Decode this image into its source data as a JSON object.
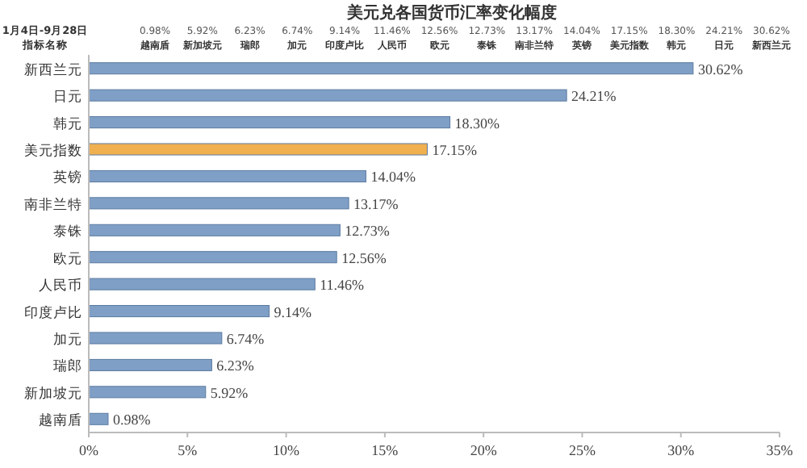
{
  "chart_data": {
    "type": "bar",
    "orientation": "horizontal",
    "title": "美元兑各国货币汇率变化幅度",
    "annotations": [
      "1月4日-9月28日",
      "指标名称"
    ],
    "categories": [
      "新西兰元",
      "日元",
      "韩元",
      "美元指数",
      "英镑",
      "南非兰特",
      "泰铢",
      "欧元",
      "人民币",
      "印度卢比",
      "加元",
      "瑞郎",
      "新加坡元",
      "越南盾"
    ],
    "values": [
      30.62,
      24.21,
      18.3,
      17.15,
      14.04,
      13.17,
      12.73,
      12.56,
      11.46,
      9.14,
      6.74,
      6.23,
      5.92,
      0.98
    ],
    "value_labels": [
      "30.62%",
      "24.21%",
      "18.30%",
      "17.15%",
      "14.04%",
      "13.17%",
      "12.73%",
      "12.56%",
      "11.46%",
      "9.14%",
      "6.74%",
      "6.23%",
      "5.92%",
      "0.98%"
    ],
    "colors": [
      "#7f9fc6",
      "#7f9fc6",
      "#7f9fc6",
      "#f0b050",
      "#7f9fc6",
      "#7f9fc6",
      "#7f9fc6",
      "#7f9fc6",
      "#7f9fc6",
      "#7f9fc6",
      "#7f9fc6",
      "#7f9fc6",
      "#7f9fc6",
      "#7f9fc6"
    ],
    "xlim": [
      0,
      35
    ],
    "xticks": [
      {
        "value": 0,
        "label": "0%"
      },
      {
        "value": 5,
        "label": "5%"
      },
      {
        "value": 10,
        "label": "10%"
      },
      {
        "value": 15,
        "label": "15%"
      },
      {
        "value": 20,
        "label": "20%"
      },
      {
        "value": 25,
        "label": "25%"
      },
      {
        "value": 30,
        "label": "30%"
      },
      {
        "value": 35,
        "label": "35%"
      }
    ],
    "grid": false
  }
}
